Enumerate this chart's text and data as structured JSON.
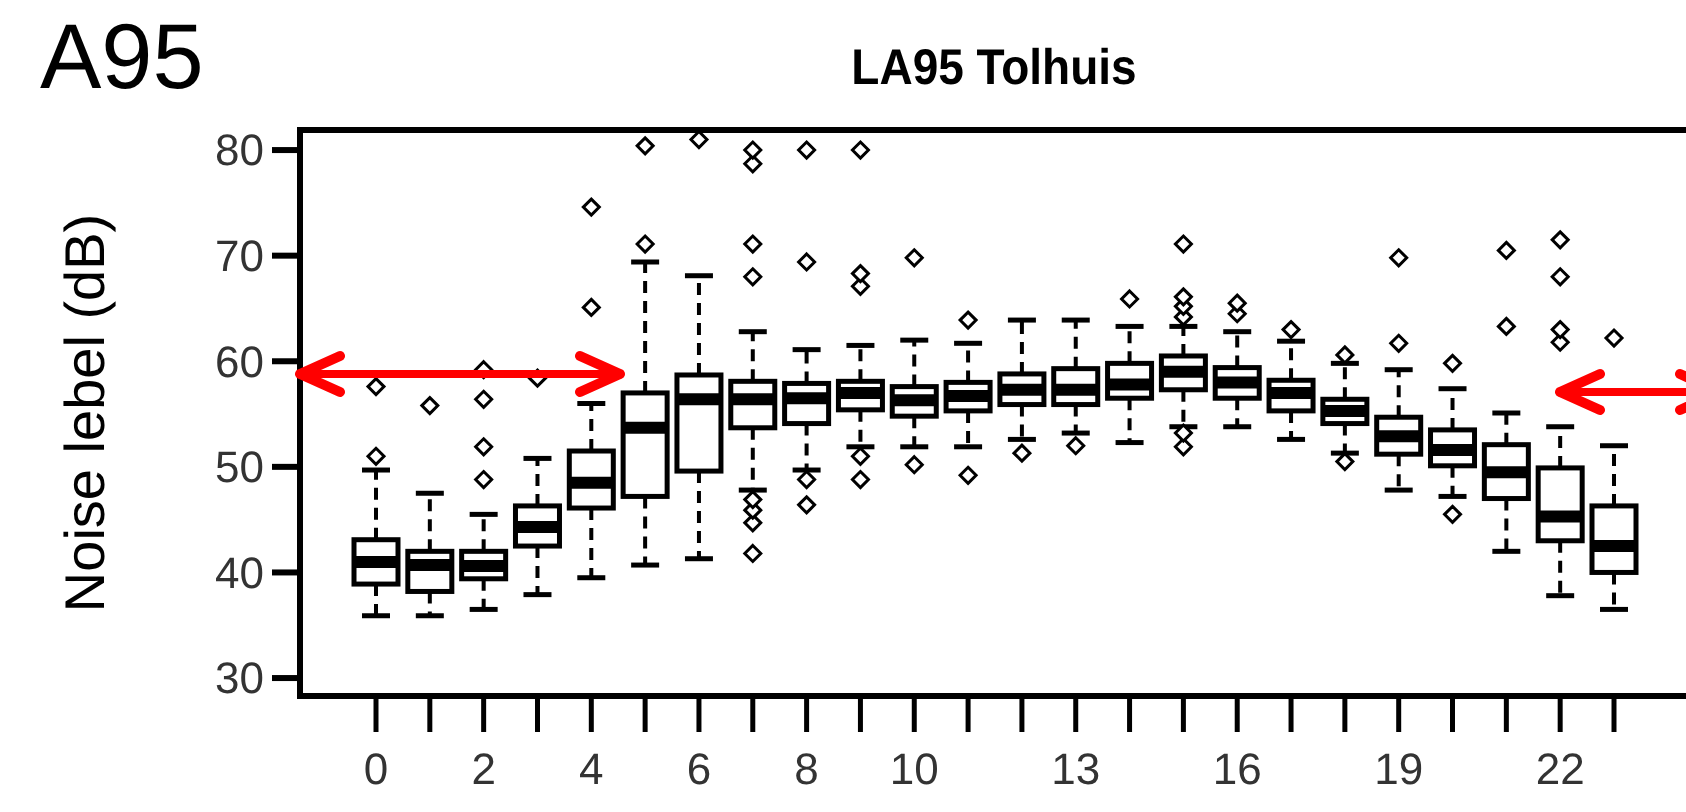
{
  "chart_data": {
    "type": "box",
    "title": "LA95 Tolhuis",
    "ylabel": "Noise lebel (dB)",
    "annotations": [
      "A95"
    ],
    "categories": [
      "0",
      null,
      "2",
      null,
      "4",
      null,
      "6",
      null,
      "8",
      null,
      "10",
      null,
      null,
      "13",
      null,
      null,
      "16",
      null,
      null,
      "19",
      null,
      null,
      "22",
      null
    ],
    "ylim": [
      28.3,
      81.9
    ],
    "yticks": [
      30,
      40,
      50,
      60,
      70,
      80
    ],
    "boxes": [
      {
        "low": 35.9,
        "q1": 38.9,
        "median": 41.0,
        "q3": 43.1,
        "high": 49.7,
        "outliers": [
          51.0,
          57.6
        ]
      },
      {
        "low": 35.9,
        "q1": 38.2,
        "median": 40.7,
        "q3": 42.0,
        "high": 47.5,
        "outliers": [
          55.8
        ]
      },
      {
        "low": 36.5,
        "q1": 39.4,
        "median": 40.6,
        "q3": 42.0,
        "high": 45.5,
        "outliers": [
          48.8,
          51.9,
          56.4,
          59.2
        ]
      },
      {
        "low": 37.9,
        "q1": 42.5,
        "median": 44.3,
        "q3": 46.3,
        "high": 50.8,
        "outliers": [
          58.4
        ]
      },
      {
        "low": 39.5,
        "q1": 46.1,
        "median": 48.5,
        "q3": 51.5,
        "high": 56.0,
        "outliers": [
          65.1,
          74.6
        ]
      },
      {
        "low": 40.7,
        "q1": 47.2,
        "median": 53.7,
        "q3": 57.0,
        "high": 69.4,
        "outliers": [
          71.1,
          80.4
        ]
      },
      {
        "low": 41.3,
        "q1": 49.6,
        "median": 56.4,
        "q3": 58.7,
        "high": 68.1,
        "outliers": [
          81.0
        ]
      },
      {
        "low": 47.8,
        "q1": 53.7,
        "median": 56.4,
        "q3": 58.1,
        "high": 62.8,
        "outliers": [
          41.8,
          44.7,
          45.9,
          46.9,
          68.0,
          71.1,
          78.7,
          80.0
        ]
      },
      {
        "low": 49.7,
        "q1": 54.1,
        "median": 56.5,
        "q3": 57.9,
        "high": 61.1,
        "outliers": [
          46.4,
          48.8,
          69.4,
          80.0
        ]
      },
      {
        "low": 51.9,
        "q1": 55.4,
        "median": 57.0,
        "q3": 58.1,
        "high": 61.5,
        "outliers": [
          48.8,
          51.0,
          67.1,
          68.3,
          80.0
        ]
      },
      {
        "low": 51.9,
        "q1": 54.8,
        "median": 56.3,
        "q3": 57.6,
        "high": 62.0,
        "outliers": [
          50.2,
          69.8
        ]
      },
      {
        "low": 51.9,
        "q1": 55.3,
        "median": 56.7,
        "q3": 58.0,
        "high": 61.7,
        "outliers": [
          49.2,
          63.9
        ]
      },
      {
        "low": 52.6,
        "q1": 55.9,
        "median": 57.3,
        "q3": 58.8,
        "high": 63.9,
        "outliers": [
          51.3
        ]
      },
      {
        "low": 53.2,
        "q1": 55.9,
        "median": 57.3,
        "q3": 59.3,
        "high": 63.9,
        "outliers": [
          52.0
        ]
      },
      {
        "low": 52.3,
        "q1": 56.5,
        "median": 57.8,
        "q3": 59.8,
        "high": 63.3,
        "outliers": [
          65.9
        ]
      },
      {
        "low": 53.8,
        "q1": 57.3,
        "median": 59.0,
        "q3": 60.5,
        "high": 63.3,
        "outliers": [
          51.9,
          53.2,
          64.2,
          65.2,
          66.1,
          71.1
        ]
      },
      {
        "low": 53.8,
        "q1": 56.5,
        "median": 58.0,
        "q3": 59.4,
        "high": 62.8,
        "outliers": [
          64.5,
          65.5
        ]
      },
      {
        "low": 52.6,
        "q1": 55.3,
        "median": 57.0,
        "q3": 58.2,
        "high": 61.9,
        "outliers": [
          63.0
        ]
      },
      {
        "low": 51.3,
        "q1": 54.1,
        "median": 55.3,
        "q3": 56.4,
        "high": 59.8,
        "outliers": [
          50.5,
          60.6
        ]
      },
      {
        "low": 47.8,
        "q1": 51.2,
        "median": 52.9,
        "q3": 54.7,
        "high": 59.2,
        "outliers": [
          61.7,
          69.8
        ]
      },
      {
        "low": 47.2,
        "q1": 50.1,
        "median": 51.6,
        "q3": 53.5,
        "high": 57.4,
        "outliers": [
          45.5,
          59.8
        ]
      },
      {
        "low": 42.0,
        "q1": 47.0,
        "median": 49.5,
        "q3": 52.1,
        "high": 55.1,
        "outliers": [
          63.3,
          70.5
        ]
      },
      {
        "low": 37.8,
        "q1": 43.0,
        "median": 45.3,
        "q3": 49.9,
        "high": 53.8,
        "outliers": [
          61.8,
          63.0,
          68.0,
          71.5
        ]
      },
      {
        "low": 36.5,
        "q1": 40.0,
        "median": 42.5,
        "q3": 46.3,
        "high": 52.0,
        "outliers": [
          62.2
        ]
      }
    ]
  }
}
